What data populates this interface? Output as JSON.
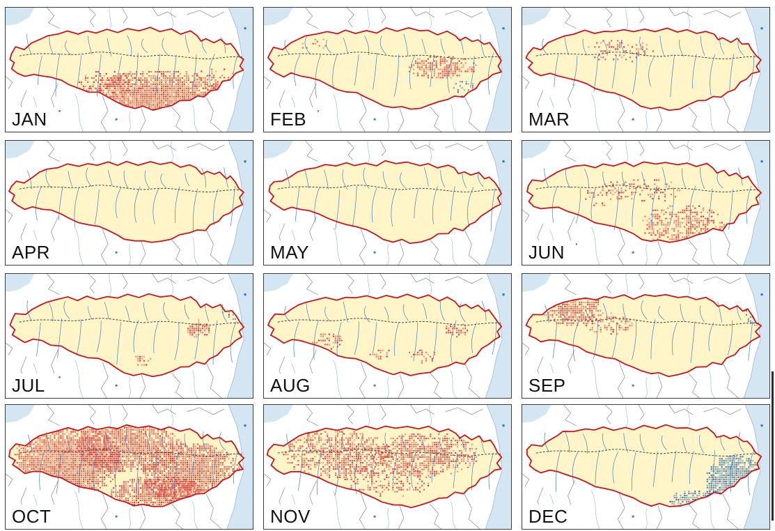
{
  "panels": [
    {
      "label": "JAN",
      "hot": [
        [
          0.62,
          0.7,
          0.3,
          0.2,
          0.85
        ],
        [
          0.42,
          0.62,
          0.13,
          0.12,
          0.35
        ],
        [
          0.85,
          0.58,
          0.1,
          0.1,
          0.3
        ]
      ],
      "cold": []
    },
    {
      "label": "FEB",
      "hot": [
        [
          0.72,
          0.48,
          0.14,
          0.1,
          0.6
        ],
        [
          0.2,
          0.3,
          0.06,
          0.06,
          0.25
        ]
      ],
      "cold": [
        [
          0.82,
          0.66,
          0.06,
          0.08,
          0.35
        ]
      ]
    },
    {
      "label": "MAR",
      "hot": [
        [
          0.4,
          0.35,
          0.14,
          0.1,
          0.25
        ]
      ],
      "cold": []
    },
    {
      "label": "APR",
      "hot": [],
      "cold": []
    },
    {
      "label": "MAY",
      "hot": [],
      "cold": []
    },
    {
      "label": "JUN",
      "hot": [
        [
          0.65,
          0.68,
          0.17,
          0.17,
          0.55
        ],
        [
          0.48,
          0.4,
          0.18,
          0.1,
          0.3
        ],
        [
          0.32,
          0.45,
          0.08,
          0.08,
          0.25
        ]
      ],
      "cold": []
    },
    {
      "label": "JUL",
      "hot": [
        [
          0.78,
          0.45,
          0.05,
          0.06,
          0.8
        ],
        [
          0.55,
          0.7,
          0.04,
          0.05,
          0.3
        ]
      ],
      "cold": [
        [
          0.92,
          0.25,
          0.05,
          0.12,
          0.6
        ]
      ]
    },
    {
      "label": "AUG",
      "hot": [
        [
          0.25,
          0.55,
          0.07,
          0.08,
          0.4
        ],
        [
          0.48,
          0.65,
          0.05,
          0.05,
          0.35
        ],
        [
          0.64,
          0.66,
          0.06,
          0.06,
          0.4
        ],
        [
          0.78,
          0.45,
          0.05,
          0.06,
          0.6
        ]
      ],
      "cold": []
    },
    {
      "label": "SEP",
      "hot": [
        [
          0.2,
          0.28,
          0.12,
          0.15,
          0.75
        ],
        [
          0.35,
          0.4,
          0.1,
          0.1,
          0.35
        ]
      ],
      "cold": [
        [
          0.94,
          0.3,
          0.05,
          0.12,
          0.5
        ]
      ]
    },
    {
      "label": "OCT",
      "hot": [
        [
          0.25,
          0.45,
          0.22,
          0.3,
          0.95
        ],
        [
          0.5,
          0.35,
          0.22,
          0.2,
          0.85
        ],
        [
          0.75,
          0.55,
          0.2,
          0.25,
          0.9
        ],
        [
          0.62,
          0.72,
          0.2,
          0.15,
          0.85
        ]
      ],
      "cold": []
    },
    {
      "label": "NOV",
      "hot": [
        [
          0.3,
          0.4,
          0.22,
          0.2,
          0.6
        ],
        [
          0.65,
          0.4,
          0.22,
          0.18,
          0.65
        ],
        [
          0.5,
          0.6,
          0.18,
          0.15,
          0.35
        ]
      ],
      "cold": []
    },
    {
      "label": "DEC",
      "hot": [],
      "cold": [
        [
          0.86,
          0.62,
          0.12,
          0.22,
          0.95
        ],
        [
          0.72,
          0.78,
          0.13,
          0.1,
          0.8
        ]
      ]
    }
  ],
  "colors": {
    "basin_fill": "#fff5c8",
    "basin_border": "#c8141e",
    "river": "#3d7fc1",
    "admin_line": "#8a8a8a",
    "sea": "#d5e6f3",
    "dry_anomaly": "#d6242b",
    "wet_anomaly": "#1d5fae"
  }
}
